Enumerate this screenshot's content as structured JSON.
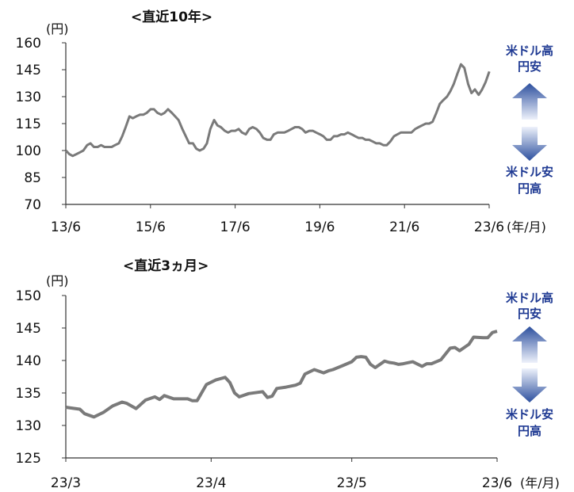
{
  "colors": {
    "line": "#7a7a7a",
    "axis": "#333333",
    "label_blue": "#1f3a93",
    "arrow_dark": "#2c4f9e",
    "arrow_light": "#eef2fb"
  },
  "arrow_labels": {
    "up_line1": "米ドル高",
    "up_line2": "円安",
    "down_line1": "米ドル安",
    "down_line2": "円高"
  },
  "chart_data": [
    {
      "type": "line",
      "title": "<直近10年>",
      "ylabel": "(円)",
      "xlabel": "(年/月)",
      "ylim": [
        70,
        160
      ],
      "yticks": [
        "160",
        "145",
        "130",
        "115",
        "100",
        "85",
        "70"
      ],
      "xlim": [
        2013.417,
        2023.417
      ],
      "xticks": [
        {
          "label": "13/6",
          "x": 2013.417
        },
        {
          "label": "15/6",
          "x": 2015.417
        },
        {
          "label": "17/6",
          "x": 2017.417
        },
        {
          "label": "19/6",
          "x": 2019.417
        },
        {
          "label": "21/6",
          "x": 2021.417
        },
        {
          "label": "23/6",
          "x": 2023.417
        }
      ],
      "series": [
        {
          "x": [
            2013.42,
            2013.5,
            2013.58,
            2013.67,
            2013.75,
            2013.83,
            2013.92,
            2014.0,
            2014.08,
            2014.17,
            2014.25,
            2014.33,
            2014.42,
            2014.5,
            2014.58,
            2014.67,
            2014.75,
            2014.83,
            2014.92,
            2015.0,
            2015.08,
            2015.17,
            2015.25,
            2015.33,
            2015.42,
            2015.5,
            2015.58,
            2015.67,
            2015.75,
            2015.83,
            2015.92,
            2016.0,
            2016.08,
            2016.17,
            2016.25,
            2016.33,
            2016.42,
            2016.5,
            2016.58,
            2016.67,
            2016.75,
            2016.83,
            2016.92,
            2017.0,
            2017.08,
            2017.17,
            2017.25,
            2017.33,
            2017.42,
            2017.5,
            2017.58,
            2017.67,
            2017.75,
            2017.83,
            2017.92,
            2018.0,
            2018.08,
            2018.17,
            2018.25,
            2018.33,
            2018.42,
            2018.5,
            2018.58,
            2018.67,
            2018.75,
            2018.83,
            2018.92,
            2019.0,
            2019.08,
            2019.17,
            2019.25,
            2019.33,
            2019.42,
            2019.5,
            2019.58,
            2019.67,
            2019.75,
            2019.83,
            2019.92,
            2020.0,
            2020.08,
            2020.17,
            2020.25,
            2020.33,
            2020.42,
            2020.5,
            2020.58,
            2020.67,
            2020.75,
            2020.83,
            2020.92,
            2021.0,
            2021.08,
            2021.17,
            2021.25,
            2021.33,
            2021.42,
            2021.5,
            2021.58,
            2021.67,
            2021.75,
            2021.83,
            2021.92,
            2022.0,
            2022.08,
            2022.17,
            2022.25,
            2022.33,
            2022.42,
            2022.5,
            2022.58,
            2022.67,
            2022.75,
            2022.83,
            2022.92,
            2023.0,
            2023.08,
            2023.17,
            2023.25,
            2023.33,
            2023.42
          ],
          "y": [
            100,
            98,
            97,
            98,
            99,
            100,
            103,
            104,
            102,
            102,
            103,
            102,
            102,
            102,
            103,
            104,
            108,
            113,
            119,
            118,
            119,
            120,
            120,
            121,
            123,
            123,
            121,
            120,
            121,
            123,
            121,
            119,
            117,
            112,
            108,
            104,
            104,
            101,
            100,
            101,
            104,
            112,
            117,
            114,
            113,
            111,
            110,
            111,
            111,
            112,
            110,
            109,
            112,
            113,
            112,
            110,
            107,
            106,
            106,
            109,
            110,
            110,
            110,
            111,
            112,
            113,
            113,
            112,
            110,
            111,
            111,
            110,
            109,
            108,
            106,
            106,
            108,
            108,
            109,
            109,
            110,
            109,
            108,
            107,
            107,
            106,
            106,
            105,
            104,
            104,
            103,
            103,
            105,
            108,
            109,
            110,
            110,
            110,
            110,
            112,
            113,
            114,
            115,
            115,
            116,
            121,
            126,
            128,
            130,
            133,
            137,
            143,
            148,
            146,
            137,
            132,
            134,
            131,
            134,
            138,
            144
          ]
        }
      ]
    },
    {
      "type": "line",
      "title": "<直近3ヵ月>",
      "ylabel": "(円)",
      "xlabel": "(年/月)",
      "ylim": [
        125,
        150
      ],
      "yticks": [
        "150",
        "145",
        "140",
        "135",
        "130",
        "125"
      ],
      "xlim": [
        0,
        92
      ],
      "xticks": [
        {
          "label": "23/3",
          "x": 0
        },
        {
          "label": "23/4",
          "x": 31
        },
        {
          "label": "23/5",
          "x": 61
        },
        {
          "label": "23/6",
          "x": 92
        }
      ],
      "series": [
        {
          "x": [
            0,
            1,
            3,
            4,
            6,
            8,
            10,
            12,
            13,
            15,
            17,
            19,
            20,
            21,
            23,
            24,
            26,
            27,
            28,
            30,
            32,
            34,
            35,
            36,
            37,
            39,
            41,
            42,
            43,
            44,
            45,
            47,
            49,
            50,
            51,
            53,
            55,
            56,
            57,
            59,
            61,
            62,
            63,
            64,
            65,
            66,
            68,
            69,
            70,
            71,
            72,
            74,
            76,
            77,
            78,
            80,
            82,
            83,
            84,
            85,
            86,
            87,
            89,
            90,
            91,
            92
          ],
          "y": [
            132.8,
            132.7,
            132.5,
            131.8,
            131.3,
            132,
            133,
            133.6,
            133.4,
            132.6,
            133.9,
            134.4,
            134,
            134.6,
            134.1,
            134.1,
            134.1,
            133.8,
            133.8,
            136.3,
            137,
            137.4,
            136.6,
            135.0,
            134.4,
            134.9,
            135.1,
            135.2,
            134.3,
            134.5,
            135.7,
            135.9,
            136.2,
            136.5,
            137.9,
            138.6,
            138.1,
            138.4,
            138.6,
            139.2,
            139.8,
            140.5,
            140.6,
            140.5,
            139.4,
            138.9,
            139.9,
            139.7,
            139.6,
            139.4,
            139.5,
            139.8,
            139.1,
            139.5,
            139.5,
            140.1,
            141.9,
            142.0,
            141.5,
            142,
            142.5,
            143.6,
            143.5,
            143.5,
            144.3,
            144.5
          ]
        }
      ]
    }
  ]
}
